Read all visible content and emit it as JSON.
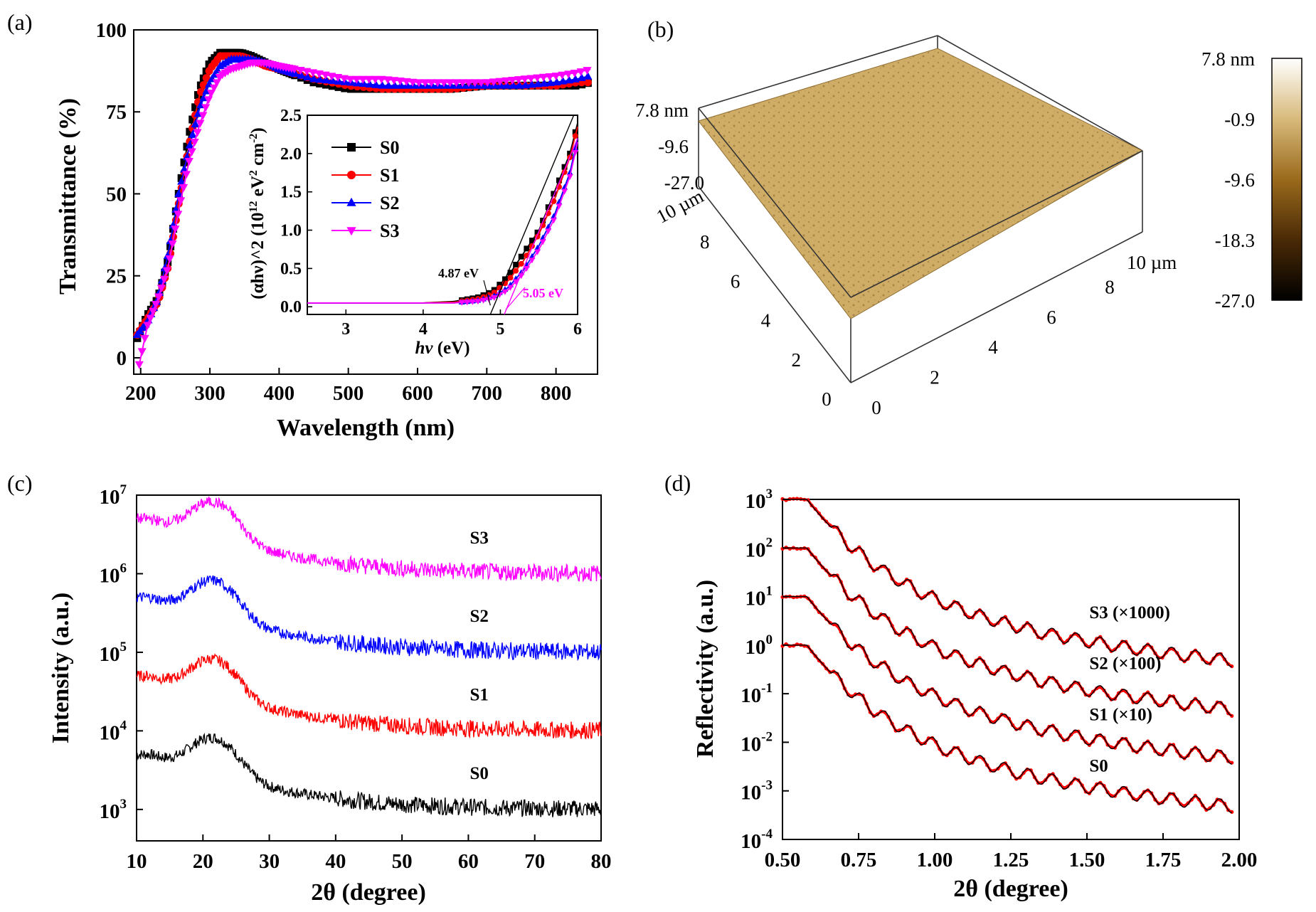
{
  "panel_a": {
    "panel_label": "(a)",
    "chart_data": {
      "type": "scatter",
      "xlabel": "Wavelength (nm)",
      "ylabel": "Transmittance (%)",
      "xlim": [
        190,
        860
      ],
      "ylim": [
        -5,
        100
      ],
      "xticks": [
        "200",
        "300",
        "400",
        "500",
        "600",
        "700",
        "800"
      ],
      "yticks": [
        "0",
        "25",
        "50",
        "75",
        "100"
      ],
      "series": [
        {
          "name": "S0",
          "color": "#000000",
          "marker": "square",
          "x": [
            195,
            210,
            225,
            240,
            255,
            270,
            285,
            300,
            315,
            330,
            345,
            360,
            380,
            400,
            450,
            500,
            550,
            600,
            650,
            700,
            750,
            800,
            830,
            850
          ],
          "y": [
            6,
            13,
            18,
            30,
            50,
            68,
            82,
            90,
            93,
            93,
            93,
            92,
            90,
            88,
            84,
            82,
            82,
            82,
            82,
            83,
            83,
            83,
            83,
            84
          ]
        },
        {
          "name": "S1",
          "color": "#ff0000",
          "marker": "circle",
          "x": [
            195,
            210,
            225,
            240,
            255,
            270,
            285,
            300,
            315,
            330,
            345,
            360,
            380,
            400,
            450,
            500,
            550,
            600,
            650,
            700,
            750,
            800,
            830,
            850
          ],
          "y": [
            7,
            12,
            17,
            28,
            47,
            65,
            80,
            88,
            92,
            92,
            92,
            91,
            89,
            88,
            85,
            83,
            82,
            82,
            82,
            83,
            83,
            83,
            84,
            84
          ]
        },
        {
          "name": "S2",
          "color": "#0000ff",
          "marker": "triangle-up",
          "x": [
            195,
            210,
            225,
            240,
            255,
            270,
            285,
            300,
            315,
            330,
            345,
            360,
            380,
            400,
            450,
            500,
            550,
            600,
            650,
            700,
            750,
            800,
            830,
            850
          ],
          "y": [
            7,
            11,
            18,
            32,
            50,
            64,
            76,
            84,
            89,
            91,
            91,
            91,
            90,
            88,
            85,
            84,
            83,
            83,
            83,
            83,
            83,
            84,
            85,
            86
          ]
        },
        {
          "name": "S3",
          "color": "#ff00ff",
          "marker": "triangle-down",
          "x": [
            198,
            210,
            225,
            240,
            255,
            270,
            285,
            300,
            315,
            330,
            345,
            360,
            380,
            400,
            450,
            500,
            550,
            600,
            650,
            700,
            750,
            800,
            830,
            850
          ],
          "y": [
            -2,
            10,
            18,
            28,
            45,
            60,
            71,
            80,
            86,
            88,
            89,
            90,
            90,
            89,
            87,
            85,
            85,
            84,
            84,
            84,
            85,
            86,
            87,
            88
          ]
        }
      ]
    },
    "inset": {
      "chart_data": {
        "type": "scatter",
        "xlabel_main": "hν",
        "xlabel_unit": " (eV)",
        "ylabel_main": "(αhν)^2 (10",
        "ylabel_exp": "12",
        "ylabel_unit": " eV",
        "ylabel_exp2": "2",
        "ylabel_unit2": " cm",
        "ylabel_exp3": "-2",
        "ylabel_close": ")",
        "xlim": [
          2.5,
          6.0
        ],
        "ylim": [
          -0.1,
          2.5
        ],
        "xticks": [
          "3",
          "4",
          "5",
          "6"
        ],
        "yticks": [
          "0.0",
          "0.5",
          "1.0",
          "1.5",
          "2.0",
          "2.5"
        ],
        "series": [
          {
            "name": "S0",
            "color": "#000000",
            "marker": "square",
            "x": [
              2.5,
              3.0,
              3.5,
              4.0,
              4.4,
              4.7,
              4.9,
              5.1,
              5.3,
              5.5,
              5.7,
              5.9,
              6.0
            ],
            "y": [
              0.05,
              0.05,
              0.05,
              0.05,
              0.07,
              0.12,
              0.2,
              0.4,
              0.7,
              1.0,
              1.5,
              2.0,
              2.4
            ]
          },
          {
            "name": "S1",
            "color": "#ff0000",
            "marker": "circle",
            "x": [
              2.5,
              3.0,
              3.5,
              4.0,
              4.4,
              4.7,
              4.9,
              5.1,
              5.3,
              5.5,
              5.7,
              5.9,
              6.0
            ],
            "y": [
              0.05,
              0.05,
              0.05,
              0.05,
              0.06,
              0.1,
              0.17,
              0.34,
              0.6,
              0.95,
              1.4,
              1.95,
              2.35
            ]
          },
          {
            "name": "S2",
            "color": "#0000ff",
            "marker": "triangle-up",
            "x": [
              2.5,
              3.0,
              3.5,
              4.0,
              4.4,
              4.7,
              4.9,
              5.1,
              5.3,
              5.5,
              5.7,
              5.9,
              6.0
            ],
            "y": [
              0.05,
              0.05,
              0.05,
              0.05,
              0.05,
              0.08,
              0.13,
              0.25,
              0.48,
              0.8,
              1.2,
              1.75,
              2.2
            ]
          },
          {
            "name": "S3",
            "color": "#ff00ff",
            "marker": "triangle-down",
            "x": [
              2.5,
              3.0,
              3.5,
              4.0,
              4.4,
              4.7,
              4.9,
              5.1,
              5.3,
              5.5,
              5.7,
              5.9,
              6.0
            ],
            "y": [
              0.05,
              0.05,
              0.05,
              0.05,
              0.05,
              0.07,
              0.11,
              0.22,
              0.44,
              0.75,
              1.15,
              1.7,
              2.15
            ]
          }
        ],
        "annotations": [
          {
            "text": "4.87 eV",
            "color": "#000000",
            "target_x": 4.87,
            "target_y": 0.0
          },
          {
            "text": "5.05 eV",
            "color": "#ff00ff",
            "target_x": 5.05,
            "target_y": 0.0
          }
        ]
      }
    }
  },
  "panel_b": {
    "panel_label": "(b)",
    "z_labels": [
      "7.8 nm",
      "-9.6",
      "-27.0"
    ],
    "y_axis_label": "10 µm",
    "y_ticks": [
      "0",
      "2",
      "4",
      "6",
      "8"
    ],
    "x_axis_label": "10 µm",
    "x_ticks": [
      "0",
      "2",
      "4",
      "6",
      "8"
    ],
    "colorbar": {
      "labels": [
        "7.8 nm",
        "-0.9",
        "-9.6",
        "-18.3",
        "-27.0"
      ],
      "colors": [
        "#ffffff",
        "#d6b878",
        "#9a6b1a",
        "#4a2a05",
        "#000000"
      ]
    },
    "surface_color": "#d6b46e"
  },
  "panel_c": {
    "panel_label": "(c)",
    "chart_data": {
      "type": "line",
      "xlabel": "2θ (degree)",
      "ylabel": "Intensity (a.u.)",
      "xlim": [
        10,
        80
      ],
      "ylim_log10": [
        2.6,
        7.0
      ],
      "y_scale": "log",
      "xticks": [
        "10",
        "20",
        "30",
        "40",
        "50",
        "60",
        "70",
        "80"
      ],
      "yticks_exp": [
        "3",
        "4",
        "5",
        "6",
        "7"
      ],
      "ytick_base": "10",
      "series": [
        {
          "name": "S0",
          "color": "#000000",
          "baseline": 1000,
          "peak": 7000,
          "tag": "S0",
          "tag_x": 57,
          "tag_y": 3000
        },
        {
          "name": "S1",
          "color": "#ff0000",
          "baseline": 10000,
          "peak": 70000,
          "tag": "S1",
          "tag_x": 57,
          "tag_y": 30000
        },
        {
          "name": "S2",
          "color": "#0000ff",
          "baseline": 100000,
          "peak": 700000,
          "tag": "S2",
          "tag_x": 57,
          "tag_y": 300000
        },
        {
          "name": "S3",
          "color": "#ff00ff",
          "baseline": 1000000,
          "peak": 7000000,
          "tag": "S3",
          "tag_x": 57,
          "tag_y": 3000000
        }
      ]
    }
  },
  "panel_d": {
    "panel_label": "(d)",
    "chart_data": {
      "type": "line",
      "xlabel": "2θ (degree)",
      "ylabel": "Reflectivity (a.u.)",
      "xlim": [
        0.5,
        2.0
      ],
      "ylim_log10": [
        -4.0,
        3.0
      ],
      "y_scale": "log",
      "xticks": [
        "0.50",
        "0.75",
        "1.00",
        "1.25",
        "1.50",
        "1.75",
        "2.00"
      ],
      "yticks_exp": [
        "-4",
        "-3",
        "-2",
        "-1",
        "0",
        "1",
        "2",
        "3"
      ],
      "ytick_base": "10",
      "series": [
        {
          "name": "S0",
          "scale": 1,
          "tag": "S0",
          "tag_x": 1.62,
          "tag_y": 0.0035
        },
        {
          "name": "S1 (×10)",
          "scale": 10,
          "tag": "S1 (×10)",
          "tag_x": 1.62,
          "tag_y": 0.04
        },
        {
          "name": "S2 (×100)",
          "scale": 100,
          "tag": "S2 (×100)",
          "tag_x": 1.62,
          "tag_y": 0.45
        },
        {
          "name": "S3 (×1000)",
          "scale": 1000,
          "tag": "S3 (×1000)",
          "tag_x": 1.62,
          "tag_y": 5.0
        }
      ],
      "measured_color": "#ff0000",
      "fit_color": "#000000"
    }
  }
}
